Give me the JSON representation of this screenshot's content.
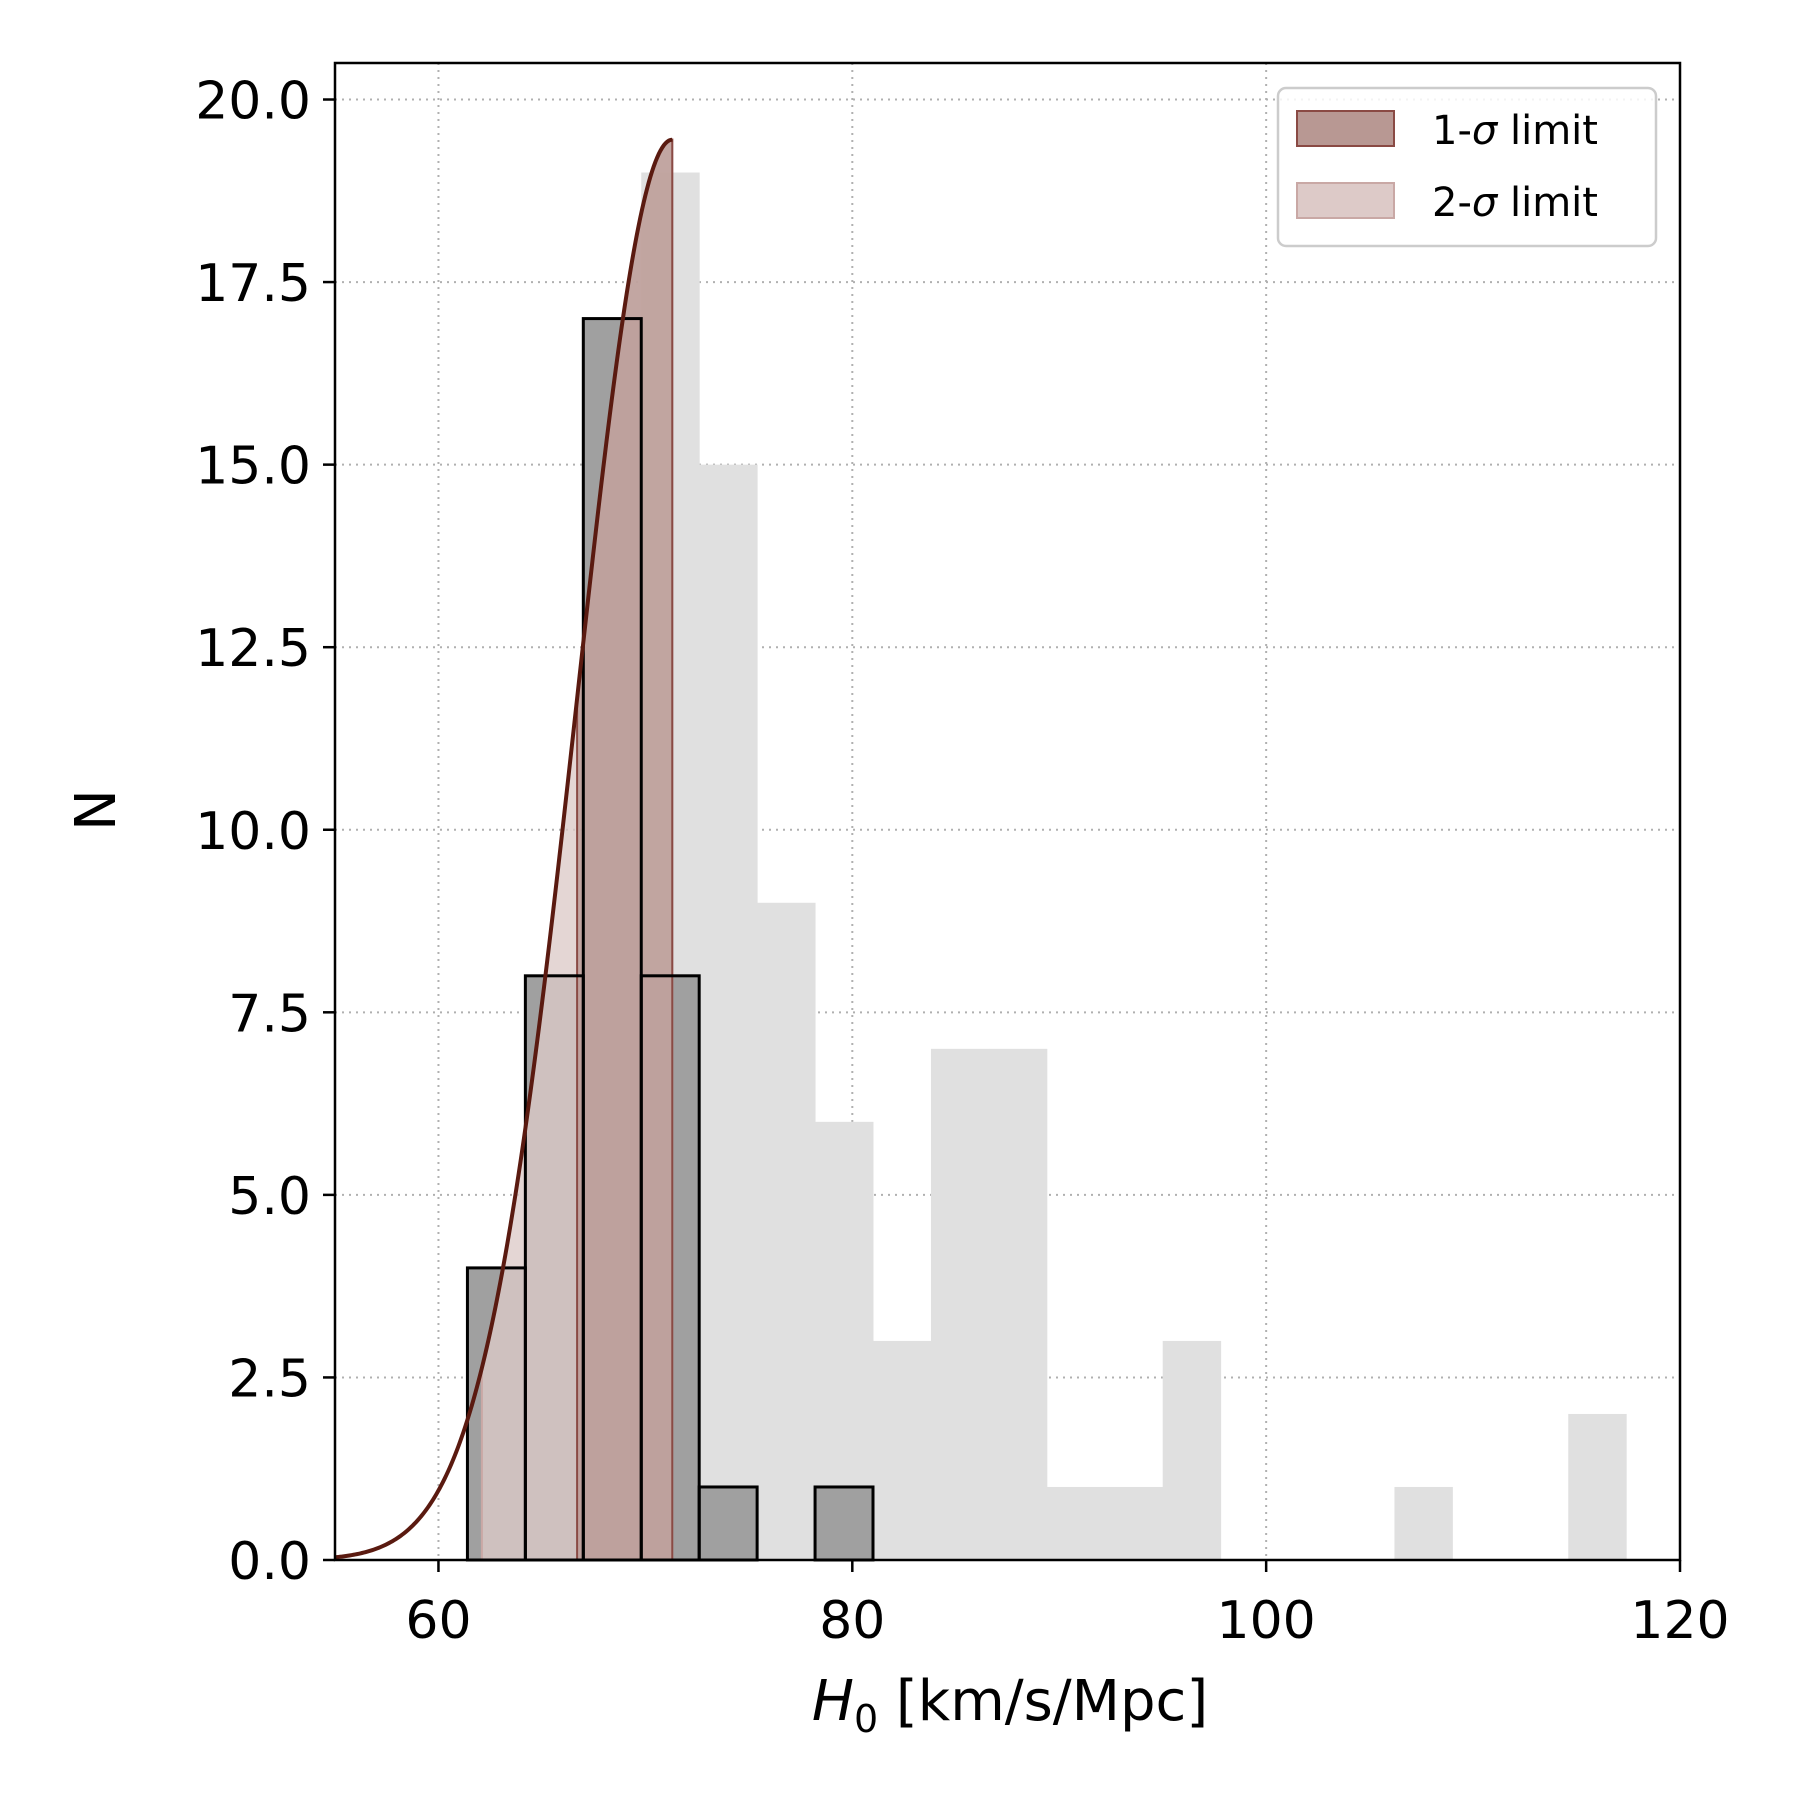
{
  "chart_data": {
    "type": "histogram",
    "xlabel": "H",
    "xlabel_sub": "0",
    "xlabel_units": " [km/s/Mpc]",
    "ylabel": "N",
    "xlim": [
      55,
      120
    ],
    "ylim": [
      0,
      20.5
    ],
    "xticks": [
      60,
      80,
      100,
      120
    ],
    "yticks": [
      0.0,
      2.5,
      5.0,
      7.5,
      10.0,
      12.5,
      15.0,
      17.5,
      20.0
    ],
    "ytick_labels": [
      "0.0",
      "2.5",
      "5.0",
      "7.5",
      "10.0",
      "12.5",
      "15.0",
      "17.5",
      "20.0"
    ],
    "grid": true,
    "legend_position": "top-right",
    "bin_edges": [
      61.4,
      64.2,
      67.0,
      69.8,
      72.6,
      75.4,
      78.2,
      81.0,
      83.8,
      86.6,
      89.4,
      92.2,
      95.0,
      97.8,
      100.6,
      103.4,
      106.2,
      109.0,
      111.8,
      114.6,
      117.4
    ],
    "series": [
      {
        "role": "background-histogram",
        "values": [
          4,
          8,
          17,
          19,
          15,
          9,
          6,
          3,
          7,
          7,
          1,
          1,
          3,
          0,
          0,
          0,
          1,
          0,
          0,
          2
        ],
        "color": "#e0e0e0"
      },
      {
        "role": "foreground-histogram",
        "values": [
          4,
          8,
          17,
          8,
          1,
          0,
          1,
          0,
          0,
          0,
          0,
          0,
          0,
          0,
          0,
          0,
          0,
          0,
          0,
          0
        ],
        "color": "#a0a0a0",
        "edge_color": "#000000"
      }
    ],
    "gaussian_curve": {
      "mean": 71.3,
      "sigma": 4.6,
      "peak": 19.45,
      "x_range": [
        55,
        71.3
      ],
      "color": "#5a1a10"
    },
    "bands": [
      {
        "name": "1-σ limit",
        "name_prefix": "1-",
        "name_sigma": "σ",
        "name_suffix": " limit",
        "x_range": [
          66.7,
          71.3
        ],
        "color": "#b89893",
        "edge": "#8a4a44"
      },
      {
        "name": "2-σ limit",
        "name_prefix": "2-",
        "name_sigma": "σ",
        "name_suffix": " limit",
        "x_range": [
          62.1,
          71.3
        ],
        "color": "#ddcac8",
        "edge": "#c9a8a5"
      }
    ]
  }
}
